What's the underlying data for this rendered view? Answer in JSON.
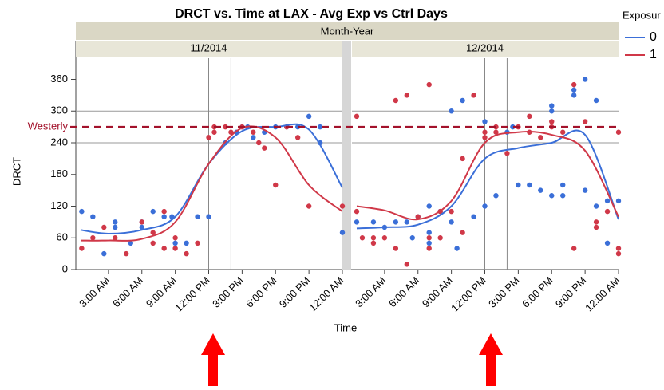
{
  "chart_data": {
    "type": "scatter",
    "title": "DRCT vs. Time at LAX - Avg Exp vs Ctrl Days",
    "group_label": "Month-Year",
    "x_label": "Time",
    "y_label": "DRCT",
    "legend_title": "Exposur",
    "ylim": [
      0,
      400
    ],
    "yticks": [
      0,
      60,
      120,
      180,
      240,
      300,
      360
    ],
    "hlines": [
      240,
      300
    ],
    "reference_line": {
      "value": 270,
      "label": "Westerly",
      "color": "#a3122b"
    },
    "xlim": [
      0,
      24
    ],
    "xticks": [
      {
        "value": 3,
        "label": "3:00 AM"
      },
      {
        "value": 6,
        "label": "6:00 AM"
      },
      {
        "value": 9,
        "label": "9:00 AM"
      },
      {
        "value": 12,
        "label": "12:00 PM"
      },
      {
        "value": 15,
        "label": "3:00 PM"
      },
      {
        "value": 18,
        "label": "6:00 PM"
      },
      {
        "value": 21,
        "label": "9:00 PM"
      },
      {
        "value": 24,
        "label": "12:00 AM"
      }
    ],
    "vlines": [
      12,
      14
    ],
    "fit_x": [
      0.5,
      3,
      6,
      9,
      12,
      15,
      18,
      21,
      24
    ],
    "panels": [
      {
        "label": "11/2014",
        "series": [
          {
            "name": "0",
            "color": "#3b6fd8",
            "x": [
              0.6,
              1.6,
              2.6,
              3.6,
              3.6,
              5,
              6,
              6,
              7,
              8,
              8.7,
              9,
              10,
              11,
              12,
              13.5,
              14.5,
              15,
              15.5,
              16,
              17,
              18,
              19,
              20,
              21,
              22,
              22,
              24
            ],
            "values": [
              110,
              100,
              30,
              90,
              80,
              50,
              80,
              90,
              110,
              100,
              100,
              50,
              50,
              100,
              100,
              240,
              260,
              270,
              270,
              250,
              260,
              270,
              270,
              270,
              290,
              240,
              270,
              70
            ],
            "fit": [
              75,
              68,
              75,
              100,
              200,
              262,
              270,
              265,
              155
            ]
          },
          {
            "name": "1",
            "color": "#d03848",
            "x": [
              0.6,
              1.6,
              2.6,
              3.6,
              4.6,
              6,
              7,
              7,
              8,
              8,
              9,
              9,
              10,
              11,
              12,
              12.5,
              12.5,
              13.5,
              14,
              15,
              16,
              16.5,
              17,
              18,
              19,
              20,
              21,
              24
            ],
            "values": [
              40,
              60,
              80,
              60,
              30,
              90,
              50,
              70,
              110,
              40,
              40,
              60,
              30,
              50,
              250,
              260,
              270,
              270,
              260,
              270,
              260,
              240,
              230,
              160,
              270,
              250,
              120,
              120
            ],
            "fit": [
              55,
              55,
              58,
              90,
              200,
              268,
              250,
              160,
              110
            ]
          }
        ]
      },
      {
        "label": "12/2014",
        "series": [
          {
            "name": "0",
            "color": "#3b6fd8",
            "x": [
              0.5,
              2,
              3,
              4,
              5,
              5.5,
              6,
              7,
              7,
              7,
              8,
              9,
              9,
              9.5,
              10,
              11,
              12,
              12,
              13,
              14,
              14.5,
              15,
              16,
              17,
              18,
              18,
              18,
              19,
              19,
              20,
              20,
              21,
              21,
              22,
              22,
              23,
              23,
              24
            ],
            "values": [
              90,
              90,
              80,
              90,
              90,
              60,
              100,
              70,
              50,
              120,
              110,
              90,
              300,
              40,
              320,
              100,
              120,
              280,
              140,
              260,
              270,
              160,
              160,
              150,
              140,
              300,
              310,
              140,
              160,
              330,
              340,
              150,
              360,
              320,
              120,
              130,
              50,
              130
            ],
            "fit": [
              78,
              80,
              85,
              120,
              210,
              230,
              240,
              255,
              95
            ]
          },
          {
            "name": "1",
            "color": "#d03848",
            "x": [
              0.5,
              0.5,
              1,
              2,
              2,
              3,
              4,
              4,
              5,
              5,
              6,
              7,
              7,
              7,
              8,
              8,
              9,
              10,
              10,
              11,
              12,
              12,
              13,
              13,
              14,
              15,
              16,
              16,
              17,
              18,
              18,
              19,
              20,
              20,
              21,
              22,
              22,
              23,
              24,
              24,
              24
            ],
            "values": [
              290,
              110,
              60,
              60,
              50,
              60,
              320,
              40,
              10,
              330,
              100,
              350,
              60,
              40,
              110,
              60,
              110,
              210,
              70,
              330,
              250,
              260,
              260,
              270,
              220,
              270,
              290,
              260,
              250,
              280,
              270,
              260,
              350,
              40,
              280,
              80,
              90,
              110,
              260,
              40,
              30
            ],
            "fit": [
              120,
              112,
              95,
              130,
              240,
              260,
              255,
              225,
              100
            ]
          }
        ]
      }
    ]
  }
}
